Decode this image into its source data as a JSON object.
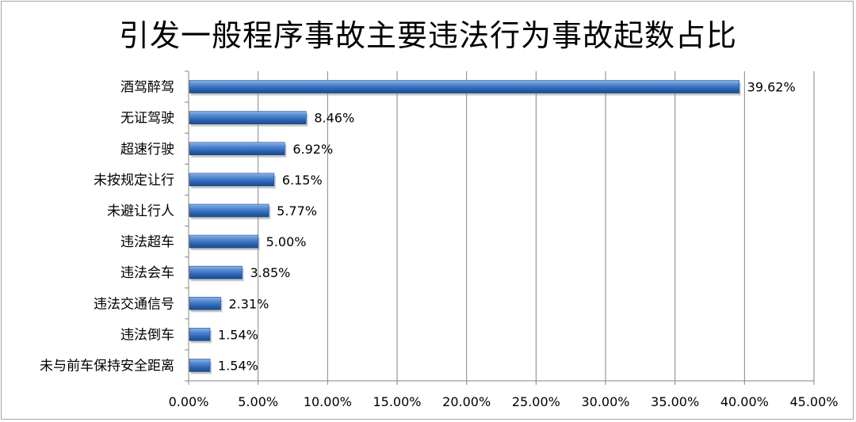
{
  "chart_data": {
    "type": "bar",
    "orientation": "horizontal",
    "title": "引发一般程序事故主要违法行为事故起数占比",
    "categories": [
      "酒驾醉驾",
      "无证驾驶",
      "超速行驶",
      "未按规定让行",
      "未避让行人",
      "违法超车",
      "违法会车",
      "违法交通信号",
      "违法倒车",
      "未与前车保持安全距离"
    ],
    "values": [
      39.62,
      8.46,
      6.92,
      6.15,
      5.77,
      5.0,
      3.85,
      2.31,
      1.54,
      1.54
    ],
    "value_labels": [
      "39.62%",
      "8.46%",
      "6.92%",
      "6.15%",
      "5.77%",
      "5.00%",
      "3.85%",
      "2.31%",
      "1.54%",
      "1.54%"
    ],
    "x_ticks": [
      "0.00%",
      "5.00%",
      "10.00%",
      "15.00%",
      "20.00%",
      "25.00%",
      "30.00%",
      "35.00%",
      "40.00%",
      "45.00%"
    ],
    "xlim": [
      0,
      45
    ],
    "xlabel": "",
    "ylabel": "",
    "grid": true,
    "legend": "none",
    "bar_color": "#2e6fc0"
  }
}
